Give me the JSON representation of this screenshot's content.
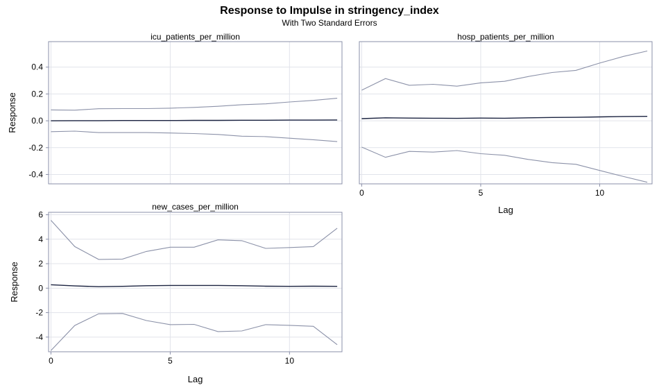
{
  "title": "Response to Impulse in stringency_index",
  "subtitle": "With Two Standard Errors",
  "colors": {
    "frame": "#8a8fa8",
    "grid": "#e1e3ea",
    "response": "#1b2340",
    "band": "#8b91a8"
  },
  "chart_data": [
    {
      "type": "line",
      "panel_title": "icu_patients_per_million",
      "ylabel": "Response",
      "xlabel": "",
      "x": [
        0,
        1,
        2,
        3,
        4,
        5,
        6,
        7,
        8,
        9,
        10,
        11,
        12
      ],
      "xlim": [
        -0.1,
        12.2
      ],
      "ylim": [
        -0.47,
        0.59
      ],
      "yticks": [
        -0.4,
        -0.2,
        0.0,
        0.2,
        0.4
      ],
      "ytick_labels": [
        "-0.4",
        "-0.2",
        "0.0",
        "0.2",
        "0.4"
      ],
      "xticks": [
        0,
        5,
        10
      ],
      "xtick_labels": [],
      "series": [
        {
          "role": "upper",
          "values": [
            0.081,
            0.079,
            0.09,
            0.091,
            0.091,
            0.094,
            0.1,
            0.108,
            0.12,
            0.126,
            0.14,
            0.152,
            0.168
          ]
        },
        {
          "role": "response",
          "values": [
            0.0,
            0.001,
            0.001,
            0.002,
            0.002,
            0.002,
            0.003,
            0.003,
            0.004,
            0.004,
            0.005,
            0.005,
            0.006
          ]
        },
        {
          "role": "lower",
          "values": [
            -0.081,
            -0.077,
            -0.088,
            -0.088,
            -0.088,
            -0.091,
            -0.095,
            -0.102,
            -0.115,
            -0.118,
            -0.13,
            -0.141,
            -0.155
          ]
        }
      ]
    },
    {
      "type": "line",
      "panel_title": "hosp_patients_per_million",
      "ylabel": "",
      "xlabel": "Lag",
      "x": [
        0,
        1,
        2,
        3,
        4,
        5,
        6,
        7,
        8,
        9,
        10,
        11,
        12
      ],
      "xlim": [
        -0.1,
        12.2
      ],
      "ylim": [
        -0.47,
        0.59
      ],
      "yticks": [
        -0.4,
        -0.2,
        0.0,
        0.2,
        0.4
      ],
      "ytick_labels": [],
      "xticks": [
        0,
        5,
        10
      ],
      "xtick_labels": [
        "0",
        "5",
        "10"
      ],
      "series": [
        {
          "role": "upper",
          "values": [
            0.228,
            0.315,
            0.265,
            0.272,
            0.258,
            0.283,
            0.294,
            0.33,
            0.36,
            0.376,
            0.43,
            0.48,
            0.52
          ]
        },
        {
          "role": "response",
          "values": [
            0.016,
            0.022,
            0.02,
            0.019,
            0.018,
            0.02,
            0.019,
            0.022,
            0.025,
            0.026,
            0.029,
            0.032,
            0.033
          ]
        },
        {
          "role": "lower",
          "values": [
            -0.196,
            -0.272,
            -0.228,
            -0.233,
            -0.222,
            -0.245,
            -0.257,
            -0.288,
            -0.312,
            -0.324,
            -0.37,
            -0.415,
            -0.458
          ]
        }
      ]
    },
    {
      "type": "line",
      "panel_title": "new_cases_per_million",
      "ylabel": "Response",
      "xlabel": "Lag",
      "x": [
        0,
        1,
        2,
        3,
        4,
        5,
        6,
        7,
        8,
        9,
        10,
        11,
        12
      ],
      "xlim": [
        -0.1,
        12.2
      ],
      "ylim": [
        -5.2,
        6.2
      ],
      "yticks": [
        -4,
        -2,
        0,
        2,
        4,
        6
      ],
      "ytick_labels": [
        "-4",
        "-2",
        "0",
        "2",
        "4",
        "6"
      ],
      "xticks": [
        0,
        5,
        10
      ],
      "xtick_labels": [
        "0",
        "5",
        "10"
      ],
      "series": [
        {
          "role": "upper",
          "values": [
            5.55,
            3.4,
            2.35,
            2.38,
            3.0,
            3.35,
            3.35,
            3.95,
            3.88,
            3.25,
            3.32,
            3.4,
            4.9
          ]
        },
        {
          "role": "response",
          "values": [
            0.28,
            0.18,
            0.12,
            0.15,
            0.2,
            0.22,
            0.22,
            0.22,
            0.2,
            0.16,
            0.15,
            0.16,
            0.15
          ]
        },
        {
          "role": "lower",
          "values": [
            -5.1,
            -3.05,
            -2.1,
            -2.07,
            -2.65,
            -2.98,
            -2.96,
            -3.55,
            -3.5,
            -2.98,
            -3.04,
            -3.12,
            -4.62
          ]
        }
      ]
    }
  ]
}
